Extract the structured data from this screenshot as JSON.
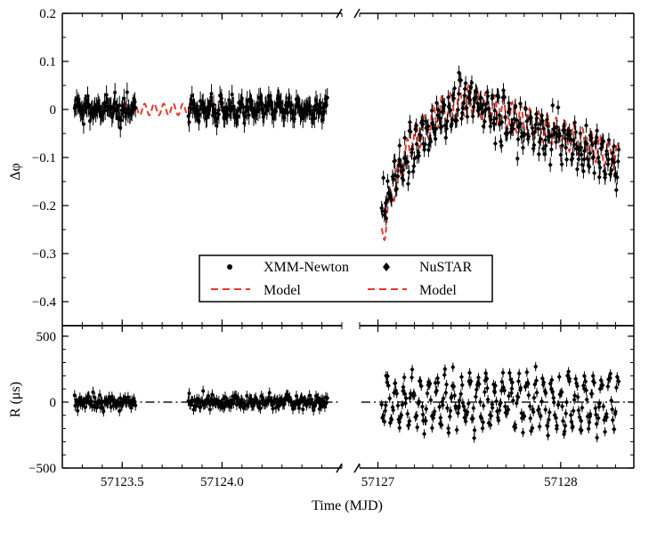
{
  "chart_data": [
    {
      "type": "scatter",
      "panel": "top",
      "ylabel": "Δφ",
      "xlabel": "",
      "ylim": [
        -0.45,
        0.2
      ],
      "yticks": [
        -0.4,
        -0.3,
        -0.2,
        -0.1,
        0,
        0.1,
        0.2
      ],
      "ytick_labels": [
        "−0.4",
        "−0.3",
        "−0.2",
        "−0.1",
        "0",
        "0.1",
        "0.2"
      ],
      "x_segments": [
        {
          "xlim": [
            57123.2,
            57124.6
          ],
          "xticks": [
            57123.5,
            57124.0
          ],
          "xtick_labels": [
            "57123.5",
            "57124.0"
          ]
        },
        {
          "xlim": [
            57126.9,
            57128.4
          ],
          "xticks": [
            57127,
            57128
          ],
          "xtick_labels": [
            "57127",
            "57128"
          ]
        }
      ],
      "axis_break": true,
      "grid": false,
      "legend": {
        "placement": "lower-center",
        "entries": [
          {
            "label": "XMM-Newton",
            "marker": "circle",
            "color": "#000000"
          },
          {
            "label": "NuSTAR",
            "marker": "diamond",
            "color": "#000000"
          },
          {
            "label": "Model",
            "style": "dashed",
            "color": "#e8372b"
          },
          {
            "label": "Model",
            "style": "dashed",
            "color": "#e8372b"
          }
        ]
      },
      "series": [
        {
          "name": "XMM-Newton",
          "marker": "circle",
          "errorbar": 0.02,
          "x_ranges": [
            [
              57123.26,
              57123.57
            ],
            [
              57123.83,
              57124.53
            ]
          ],
          "model_noise": 0.014
        },
        {
          "name": "NuSTAR",
          "marker": "diamond",
          "errorbar": 0.015,
          "x_range": [
            57127.02,
            57128.32
          ],
          "trend_knots": [
            [
              57127.03,
              -0.2
            ],
            [
              57127.12,
              -0.12
            ],
            [
              57127.3,
              -0.03
            ],
            [
              57127.5,
              0.03
            ],
            [
              57127.7,
              -0.02
            ],
            [
              57128.0,
              -0.06
            ],
            [
              57128.32,
              -0.12
            ]
          ],
          "scatter": 0.04
        },
        {
          "name": "Model",
          "style": "dashed",
          "color": "#e8372b",
          "oscillation_period_days": 0.048,
          "segment1": {
            "x_range": [
              57123.26,
              57124.53
            ],
            "baseline": 0,
            "amplitude": 0.012
          },
          "segment2": {
            "x_range": [
              57127.02,
              57128.32
            ],
            "knots": [
              [
                57127.02,
                -0.27
              ],
              [
                57127.08,
                -0.17
              ],
              [
                57127.18,
                -0.07
              ],
              [
                57127.35,
                0.0
              ],
              [
                57127.5,
                0.02
              ],
              [
                57127.7,
                -0.01
              ],
              [
                57128.0,
                -0.05
              ],
              [
                57128.32,
                -0.1
              ]
            ],
            "amplitude": 0.03
          }
        }
      ]
    },
    {
      "type": "scatter",
      "panel": "bottom",
      "ylabel": "R (μs)",
      "xlabel": "Time (MJD)",
      "ylim": [
        -500,
        580
      ],
      "yticks": [
        -500,
        0,
        500
      ],
      "ytick_labels": [
        "−500",
        "0",
        "500"
      ],
      "zero_line": {
        "style": "dash-dot",
        "color": "#000000"
      },
      "series": [
        {
          "name": "XMM-Newton",
          "marker": "circle",
          "errorbar": 40,
          "x_ranges": [
            [
              57123.26,
              57123.57
            ],
            [
              57123.83,
              57124.53
            ]
          ],
          "scatter": 40
        },
        {
          "name": "NuSTAR",
          "marker": "diamond",
          "errorbar": 35,
          "x_range": [
            57127.02,
            57128.32
          ],
          "scatter": 200
        }
      ]
    }
  ]
}
